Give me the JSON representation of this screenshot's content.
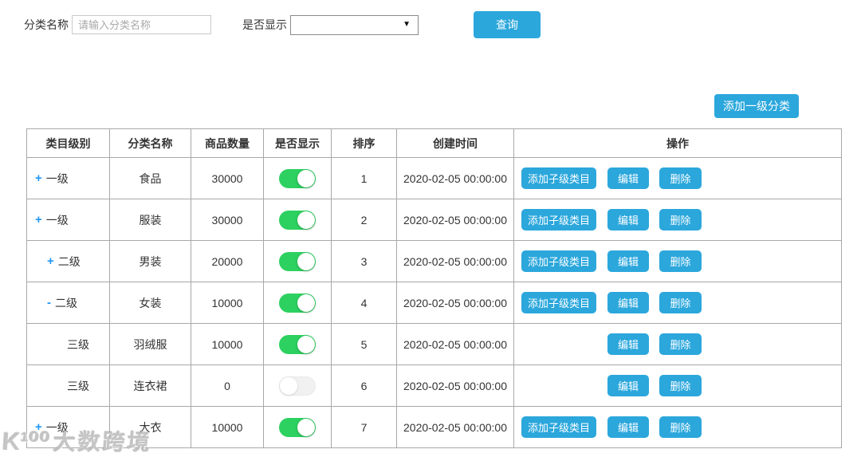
{
  "colors": {
    "accent_blue": "#2ba7dc",
    "toggle_on_green": "#2dd160",
    "toggle_off_gray": "#f1f1f1",
    "expand_icon_blue": "#2196f3",
    "table_border_gray": "#a8a8a8"
  },
  "filters": {
    "category_name_label": "分类名称",
    "category_name_placeholder": "请输入分类名称",
    "category_name_value": "",
    "visible_label": "是否显示",
    "visible_selected_value": "",
    "dropdown_icon": "▼",
    "search_button_label": "查询"
  },
  "toolbar": {
    "add_root_button_label": "添加一级分类"
  },
  "table": {
    "columns": [
      "类目级别",
      "分类名称",
      "商品数量",
      "是否显示",
      "排序",
      "创建时间",
      "操作"
    ],
    "action_labels": {
      "add_child": "添加子级类目",
      "edit": "编辑",
      "delete": "删除"
    },
    "rows": [
      {
        "level": "一级",
        "expand": "+",
        "indent": 0,
        "name": "食品",
        "quantity": "30000",
        "visible": true,
        "sort": "1",
        "created": "2020-02-05 00:00:00",
        "can_add_child": true
      },
      {
        "level": "一级",
        "expand": "+",
        "indent": 0,
        "name": "服装",
        "quantity": "30000",
        "visible": true,
        "sort": "2",
        "created": "2020-02-05 00:00:00",
        "can_add_child": true
      },
      {
        "level": "二级",
        "expand": "+",
        "indent": 1,
        "name": "男装",
        "quantity": "20000",
        "visible": true,
        "sort": "3",
        "created": "2020-02-05 00:00:00",
        "can_add_child": true
      },
      {
        "level": "二级",
        "expand": "-",
        "indent": 1,
        "name": "女装",
        "quantity": "10000",
        "visible": true,
        "sort": "4",
        "created": "2020-02-05 00:00:00",
        "can_add_child": true
      },
      {
        "level": "三级",
        "expand": "",
        "indent": 2,
        "name": "羽绒服",
        "quantity": "10000",
        "visible": true,
        "sort": "5",
        "created": "2020-02-05 00:00:00",
        "can_add_child": false
      },
      {
        "level": "三级",
        "expand": "",
        "indent": 2,
        "name": "连衣裙",
        "quantity": "0",
        "visible": false,
        "sort": "6",
        "created": "2020-02-05 00:00:00",
        "can_add_child": false
      },
      {
        "level": "一级",
        "expand": "+",
        "indent": 0,
        "name": "大衣",
        "quantity": "10000",
        "visible": true,
        "sort": "7",
        "created": "2020-02-05 00:00:00",
        "can_add_child": true
      }
    ]
  },
  "watermark": {
    "logo": "K¹⁰⁰",
    "text": "大数跨境"
  }
}
